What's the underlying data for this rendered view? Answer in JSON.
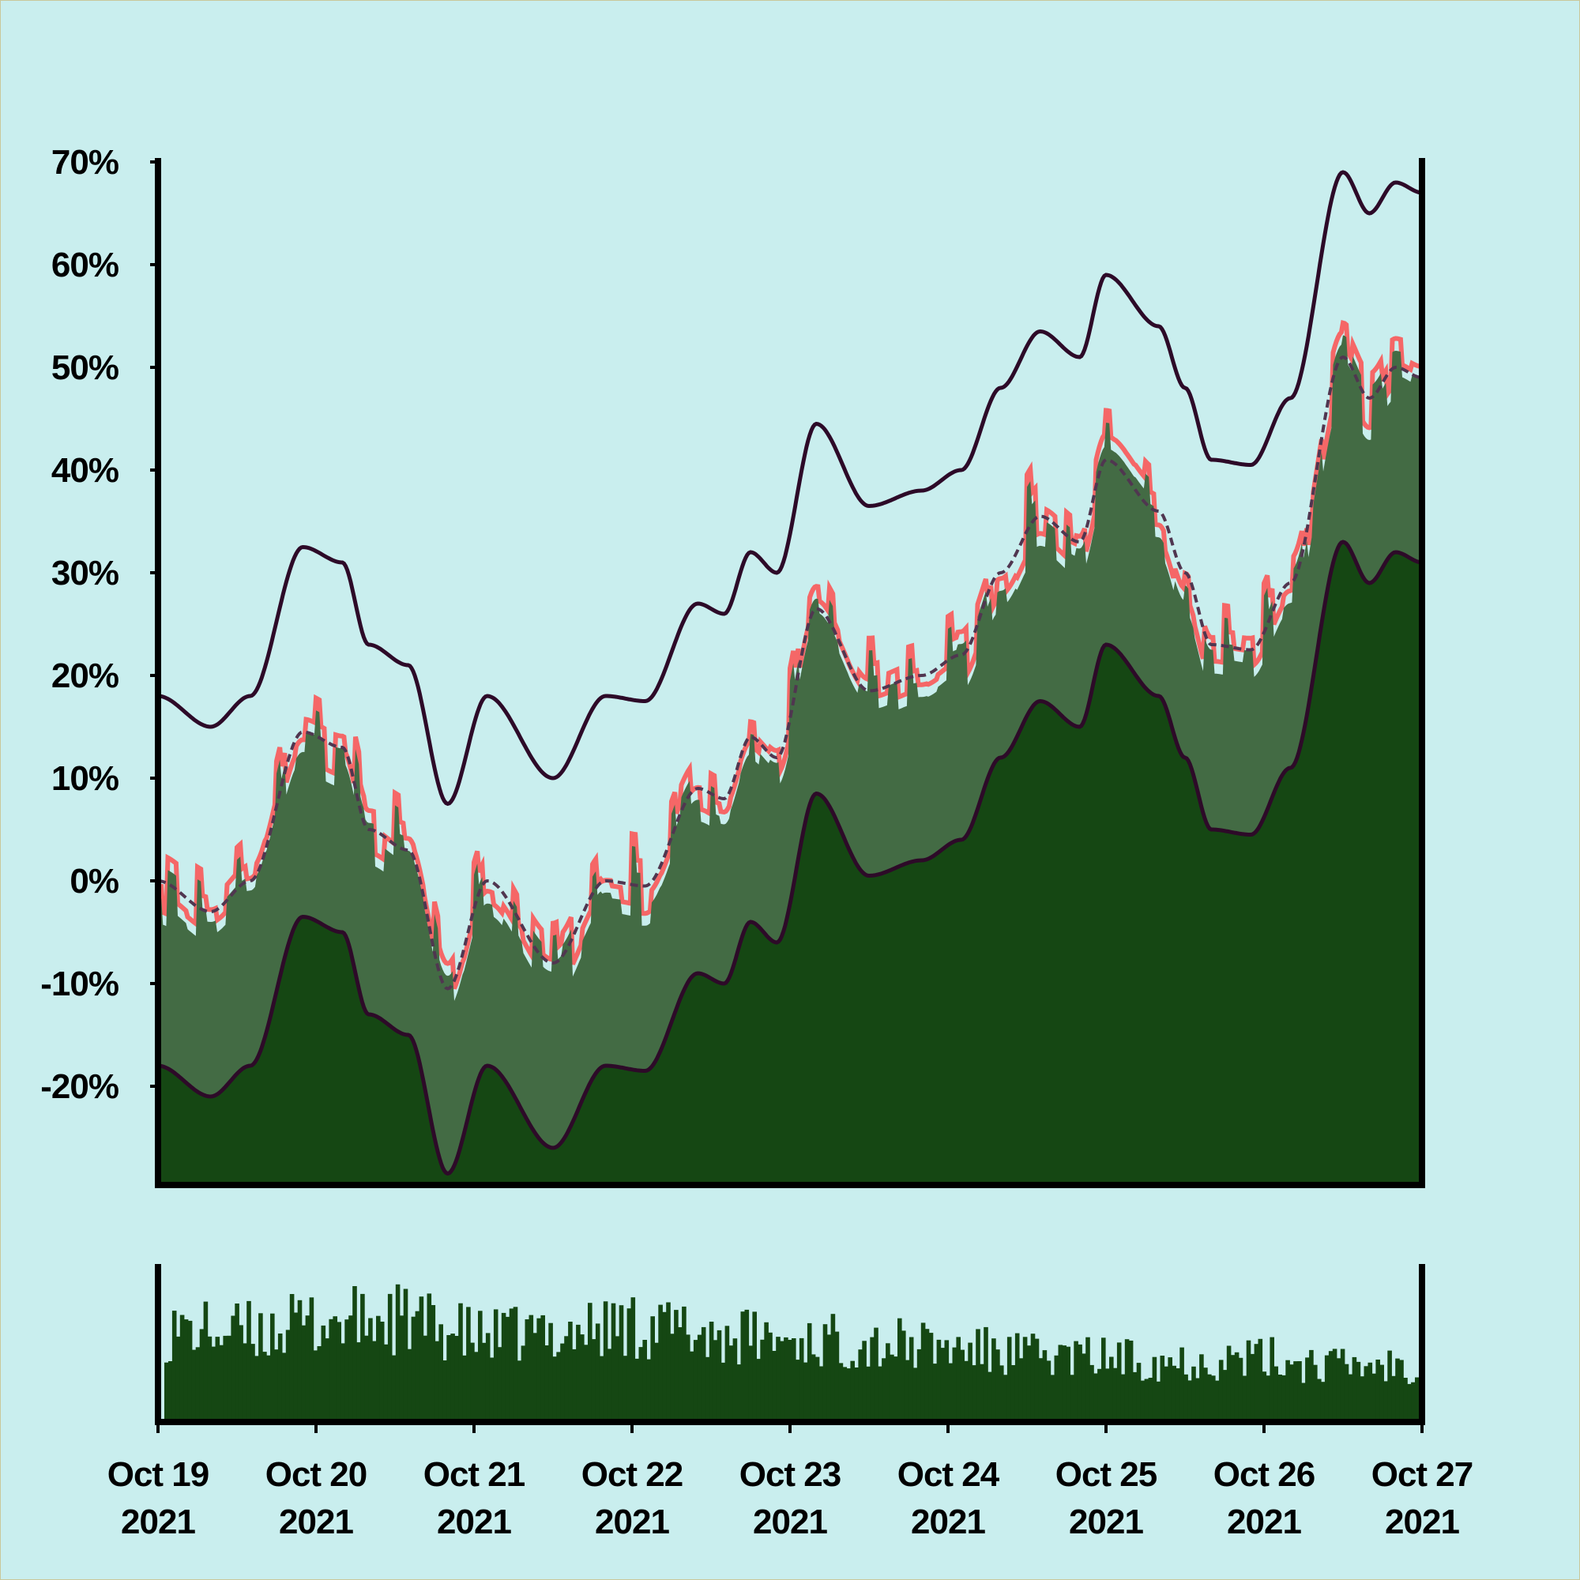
{
  "chart_data": {
    "type": "area",
    "y_tick_labels": [
      "70%",
      "60%",
      "50%",
      "40%",
      "30%",
      "20%",
      "10%",
      "0%",
      "-10%",
      "-20%"
    ],
    "y_ticks": [
      70,
      60,
      50,
      40,
      30,
      20,
      10,
      0,
      -10,
      -20
    ],
    "ylim": [
      -29,
      70.8
    ],
    "x_tick_labels": [
      {
        "month_day": "Oct 19",
        "year": "2021"
      },
      {
        "month_day": "Oct 20",
        "year": "2021"
      },
      {
        "month_day": "Oct 21",
        "year": "2021"
      },
      {
        "month_day": "Oct 22",
        "year": "2021"
      },
      {
        "month_day": "Oct 23",
        "year": "2021"
      },
      {
        "month_day": "Oct 24",
        "year": "2021"
      },
      {
        "month_day": "Oct 25",
        "year": "2021"
      },
      {
        "month_day": "Oct 26",
        "year": "2021"
      },
      {
        "month_day": "Oct 27",
        "year": "2021"
      }
    ],
    "x_dates": [
      "2021-10-19",
      "2021-10-20",
      "2021-10-21",
      "2021-10-22",
      "2021-10-23",
      "2021-10-24",
      "2021-10-25",
      "2021-10-26",
      "2021-10-27"
    ],
    "anchors": [
      [
        "2021-10-19 00:00",
        0
      ],
      [
        "2021-10-19 08:00",
        -3
      ],
      [
        "2021-10-19 14:00",
        0
      ],
      [
        "2021-10-19 22:00",
        14.5
      ],
      [
        "2021-10-20 04:00",
        13
      ],
      [
        "2021-10-20 08:00",
        5
      ],
      [
        "2021-10-20 14:00",
        3
      ],
      [
        "2021-10-20 20:00",
        -10.5
      ],
      [
        "2021-10-21 02:00",
        0
      ],
      [
        "2021-10-21 12:00",
        -8
      ],
      [
        "2021-10-21 20:00",
        0
      ],
      [
        "2021-10-22 02:00",
        -0.5
      ],
      [
        "2021-10-22 10:00",
        9
      ],
      [
        "2021-10-22 14:00",
        8
      ],
      [
        "2021-10-22 18:00",
        14
      ],
      [
        "2021-10-22 22:00",
        12
      ],
      [
        "2021-10-23 04:00",
        26.5
      ],
      [
        "2021-10-23 12:00",
        18.5
      ],
      [
        "2021-10-23 20:00",
        20
      ],
      [
        "2021-10-24 02:00",
        22
      ],
      [
        "2021-10-24 08:00",
        30
      ],
      [
        "2021-10-24 14:00",
        35.5
      ],
      [
        "2021-10-24 20:00",
        33
      ],
      [
        "2021-10-25 00:00",
        41
      ],
      [
        "2021-10-25 08:00",
        36
      ],
      [
        "2021-10-25 12:00",
        30
      ],
      [
        "2021-10-25 16:00",
        23
      ],
      [
        "2021-10-25 22:00",
        22.5
      ],
      [
        "2021-10-26 04:00",
        29
      ],
      [
        "2021-10-26 12:00",
        51
      ],
      [
        "2021-10-26 16:00",
        47
      ],
      [
        "2021-10-26 20:00",
        50
      ],
      [
        "2021-10-27 00:00",
        49
      ]
    ],
    "band_half_width": 18,
    "volume_ylim": [
      0,
      100
    ],
    "volume_series": [
      [
        0,
        72
      ],
      [
        12,
        70
      ],
      [
        24,
        78
      ],
      [
        36,
        80
      ],
      [
        48,
        66
      ],
      [
        60,
        70
      ],
      [
        72,
        76
      ],
      [
        84,
        68
      ],
      [
        96,
        64
      ],
      [
        108,
        62
      ],
      [
        120,
        58
      ],
      [
        132,
        52
      ],
      [
        144,
        50
      ],
      [
        156,
        48
      ],
      [
        168,
        50
      ],
      [
        180,
        44
      ],
      [
        192,
        46
      ],
      [
        204,
        42
      ],
      [
        216,
        38
      ],
      [
        228,
        34
      ],
      [
        240,
        30
      ],
      [
        252,
        24
      ],
      [
        264,
        22
      ],
      [
        276,
        28
      ],
      [
        288,
        20
      ]
    ],
    "series": []
  },
  "colors": {
    "background": "#c9eeee",
    "frame_border": "#c9c79a",
    "dark_fill": "#154713",
    "band_fill": "#436b44",
    "price_line": "#f56767",
    "envelope_line": "#2d0a28",
    "dashed_line": "#503650",
    "axis": "#000000"
  }
}
